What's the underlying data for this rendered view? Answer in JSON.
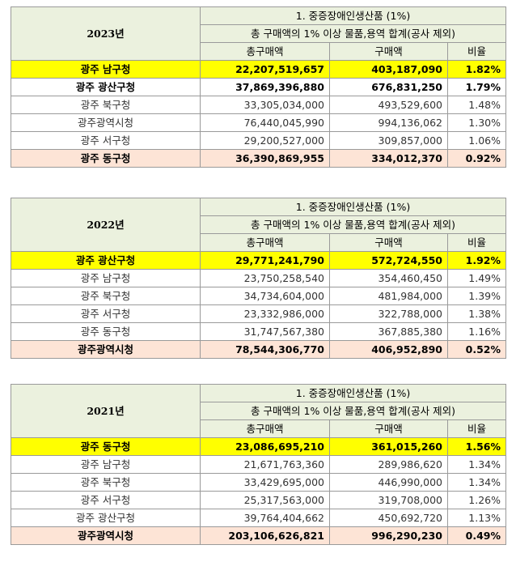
{
  "blocks": [
    {
      "year": "2023년",
      "section_title": "1. 중증장애인생산품 (1%)",
      "subtitle": "총 구매액의 1% 이상 물품,용역 합계(공사 제외)",
      "columns": [
        "총구매액",
        "구매액",
        "비율"
      ],
      "rows": [
        {
          "name": "광주 남구청",
          "total": "22,207,519,657",
          "purchase": "403,187,090",
          "ratio": "1.82%"
        },
        {
          "name": "광주 광산구청",
          "total": "37,869,396,880",
          "purchase": "676,831,250",
          "ratio": "1.79%"
        },
        {
          "name": "광주 북구청",
          "total": "33,305,034,000",
          "purchase": "493,529,600",
          "ratio": "1.48%"
        },
        {
          "name": "광주광역시청",
          "total": "76,440,045,990",
          "purchase": "994,136,062",
          "ratio": "1.30%"
        },
        {
          "name": "광주 서구청",
          "total": "29,200,527,000",
          "purchase": "309,857,000",
          "ratio": "1.06%"
        },
        {
          "name": "광주 동구청",
          "total": "36,390,869,955",
          "purchase": "334,012,370",
          "ratio": "0.92%"
        }
      ]
    },
    {
      "year": "2022년",
      "section_title": "1. 중증장애인생산품 (1%)",
      "subtitle": "총 구매액의 1% 이상 물품,용역 합계(공사 제외)",
      "columns": [
        "총구매액",
        "구매액",
        "비율"
      ],
      "rows": [
        {
          "name": "광주 광산구청",
          "total": "29,771,241,790",
          "purchase": "572,724,550",
          "ratio": "1.92%"
        },
        {
          "name": "광주 남구청",
          "total": "23,750,258,540",
          "purchase": "354,460,450",
          "ratio": "1.49%"
        },
        {
          "name": "광주 북구청",
          "total": "34,734,604,000",
          "purchase": "481,984,000",
          "ratio": "1.39%"
        },
        {
          "name": "광주 서구청",
          "total": "23,332,986,000",
          "purchase": "322,788,000",
          "ratio": "1.38%"
        },
        {
          "name": "광주 동구청",
          "total": "31,747,567,380",
          "purchase": "367,885,380",
          "ratio": "1.16%"
        },
        {
          "name": "광주광역시청",
          "total": "78,544,306,770",
          "purchase": "406,952,890",
          "ratio": "0.52%"
        }
      ]
    },
    {
      "year": "2021년",
      "section_title": "1. 중증장애인생산품 (1%)",
      "subtitle": "총 구매액의 1% 이상 물품,용역 합계(공사 제외)",
      "columns": [
        "총구매액",
        "구매액",
        "비율"
      ],
      "rows": [
        {
          "name": "광주 동구청",
          "total": "23,086,695,210",
          "purchase": "361,015,260",
          "ratio": "1.56%"
        },
        {
          "name": "광주 남구청",
          "total": "21,671,763,360",
          "purchase": "289,986,620",
          "ratio": "1.34%"
        },
        {
          "name": "광주 북구청",
          "total": "33,429,695,000",
          "purchase": "446,990,000",
          "ratio": "1.34%"
        },
        {
          "name": "광주 서구청",
          "total": "25,317,563,000",
          "purchase": "319,708,000",
          "ratio": "1.26%"
        },
        {
          "name": "광주 광산구청",
          "total": "39,764,404,662",
          "purchase": "450,692,720",
          "ratio": "1.13%"
        },
        {
          "name": "광주광역시청",
          "total": "203,106,626,821",
          "purchase": "996,290,230",
          "ratio": "0.49%"
        }
      ]
    }
  ]
}
